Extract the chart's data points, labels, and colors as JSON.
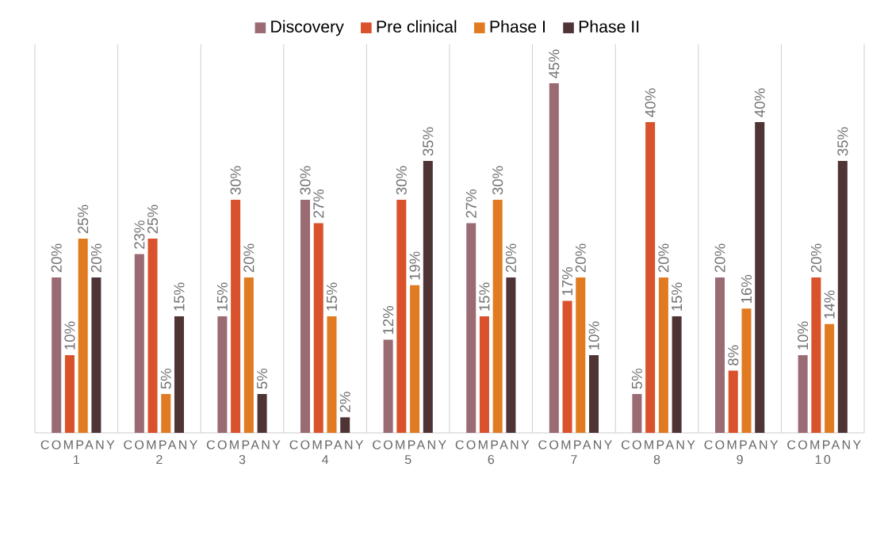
{
  "chart_data": {
    "type": "bar",
    "categories": [
      "COMPANY 1",
      "COMPANY 2",
      "COMPANY 3",
      "COMPANY 4",
      "COMPANY 5",
      "COMPANY 6",
      "COMPANY 7",
      "COMPANY 8",
      "COMPANY 9",
      "COMPANY 10"
    ],
    "series": [
      {
        "name": "Discovery",
        "color": "#9b6b73",
        "values": [
          20,
          23,
          15,
          30,
          12,
          27,
          45,
          5,
          20,
          10
        ],
        "value_labels": [
          "20%",
          "23%",
          "15%",
          "30%",
          "12%",
          "27%",
          "45%",
          "5%",
          "20%",
          "10%"
        ]
      },
      {
        "name": "Pre clinical",
        "color": "#d9522b",
        "values": [
          10,
          25,
          30,
          27,
          30,
          15,
          17,
          40,
          8,
          20
        ],
        "value_labels": [
          "10%",
          "25%",
          "30%",
          "27%",
          "30%",
          "15%",
          "17%",
          "40%",
          "8%",
          "20%"
        ]
      },
      {
        "name": "Phase I",
        "color": "#e07b22",
        "values": [
          25,
          5,
          20,
          15,
          19,
          30,
          20,
          20,
          16,
          14
        ],
        "value_labels": [
          "25%",
          "5%",
          "20%",
          "15%",
          "19%",
          "30%",
          "20%",
          "20%",
          "16%",
          "14%"
        ]
      },
      {
        "name": "Phase II",
        "color": "#4f3436",
        "values": [
          20,
          15,
          5,
          2,
          35,
          20,
          10,
          15,
          40,
          35
        ],
        "value_labels": [
          "20%",
          "15%",
          "5%",
          "2%",
          "35%",
          "20%",
          "10%",
          "15%",
          "40%",
          "35%"
        ]
      }
    ],
    "ylim": [
      0,
      50
    ],
    "tick_labels": "x",
    "grid": "x",
    "legend": "top"
  }
}
